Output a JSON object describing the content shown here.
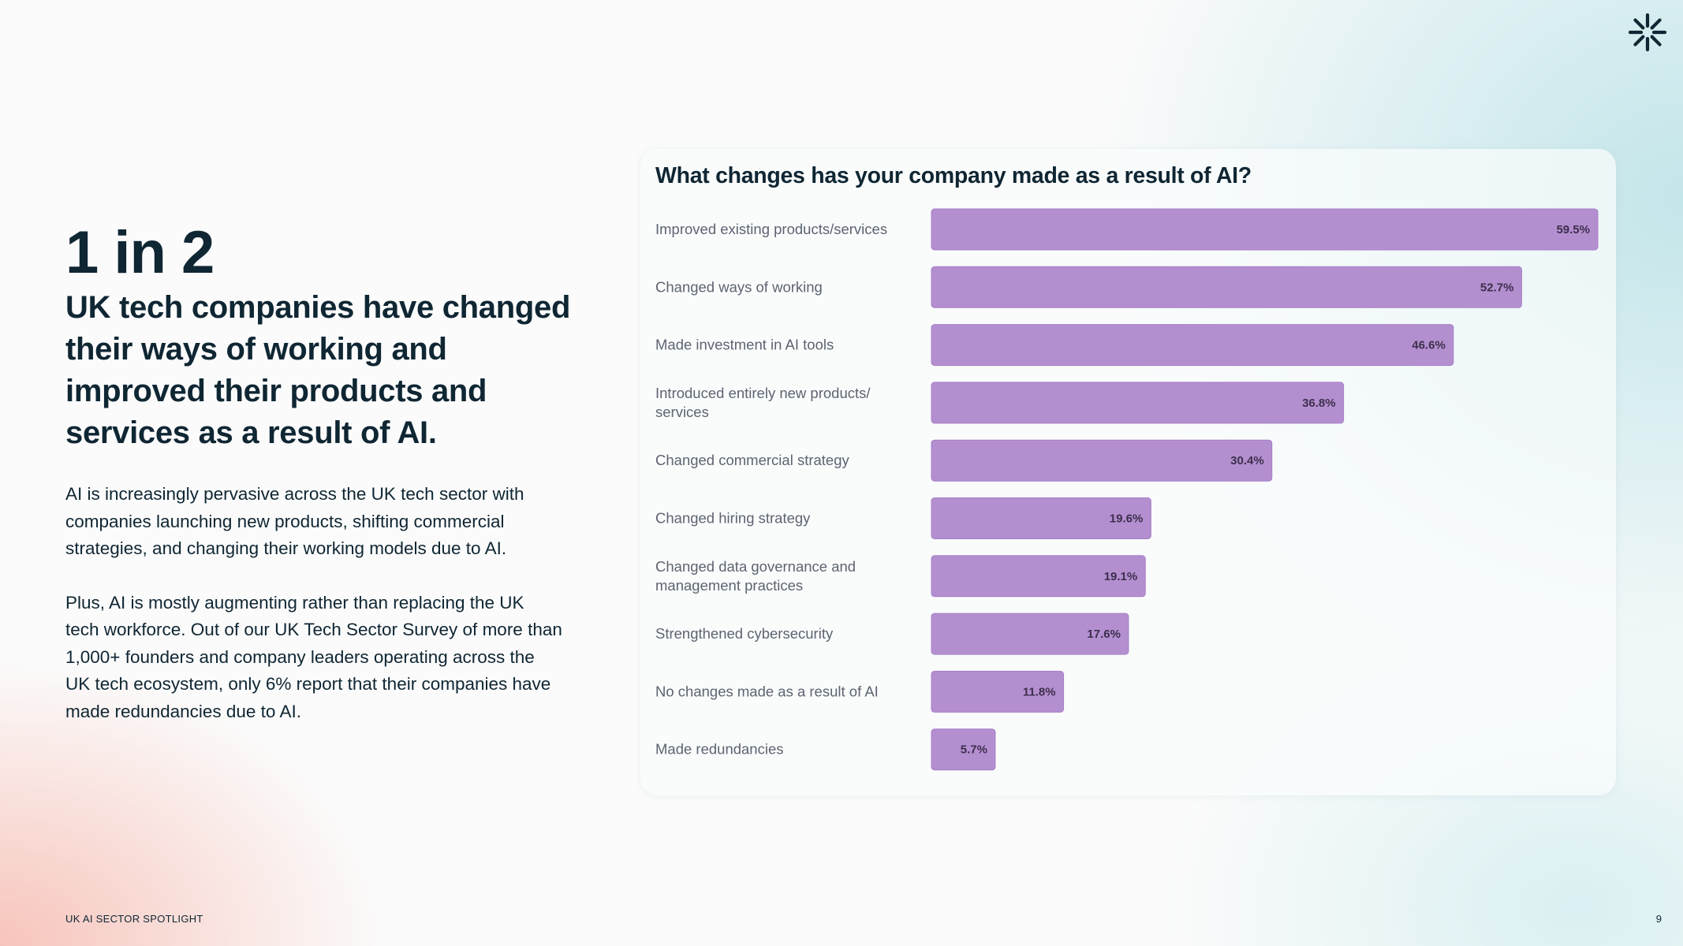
{
  "colors": {
    "bar": "#b48fd0",
    "bar_stroke": "#a67fc6",
    "text_dark": "#0f2633",
    "label_gray": "#5c6470"
  },
  "logo": {
    "icon": "asterisk-burst-icon"
  },
  "left": {
    "big_stat": "1 in 2",
    "headline": "UK tech companies have changed their ways of working and improved their products and services as a result of AI.",
    "paragraph_1": "AI is increasingly pervasive across the UK tech sector with companies launching new products, shifting commercial strategies, and changing their working models due to AI.",
    "paragraph_2": "Plus, AI is mostly augmenting rather than replacing the UK tech workforce. Out of our UK Tech Sector Survey of more than 1,000+ founders and company leaders operating across the UK tech ecosystem, only 6% report that their companies have made redundancies due to AI."
  },
  "chart_data": {
    "type": "bar",
    "orientation": "horizontal",
    "title": "What changes has your company made as a result of AI?",
    "categories": [
      "Improved existing products/services",
      "Changed ways of working",
      "Made investment in AI tools",
      "Introduced entirely new products/ services",
      "Changed commercial strategy",
      "Changed hiring strategy",
      "Changed data governance and management practices",
      "Strengthened cybersecurity",
      "No changes made as a result of AI",
      "Made redundancies"
    ],
    "category_lines": [
      [
        "Improved existing products/services"
      ],
      [
        "Changed ways of working"
      ],
      [
        "Made investment in AI tools"
      ],
      [
        "Introduced entirely new products/",
        "services"
      ],
      [
        "Changed commercial strategy"
      ],
      [
        "Changed hiring strategy"
      ],
      [
        "Changed data governance and",
        "management practices"
      ],
      [
        "Strengthened cybersecurity"
      ],
      [
        "No changes made as a result of AI"
      ],
      [
        "Made redundancies"
      ]
    ],
    "values": [
      59.5,
      52.7,
      46.6,
      36.8,
      30.4,
      19.6,
      19.1,
      17.6,
      11.8,
      5.7
    ],
    "value_labels": [
      "59.5%",
      "52.7%",
      "46.6%",
      "36.8%",
      "30.4%",
      "19.6%",
      "19.1%",
      "17.6%",
      "11.8%",
      "5.7%"
    ],
    "xlim": [
      0,
      59.5
    ],
    "unit": "%",
    "grid": false,
    "legend": "none"
  },
  "footer": {
    "left": "UK AI SECTOR SPOTLIGHT",
    "page_number": "9"
  }
}
